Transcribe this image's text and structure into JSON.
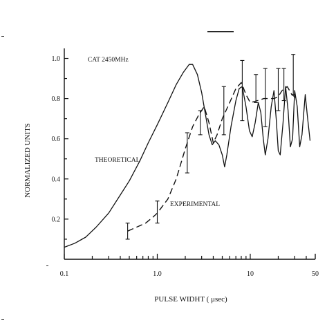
{
  "chart_data": {
    "type": "line",
    "title": "",
    "annotation": "CAT 2450MHz",
    "xlabel": "PULSE WIDHT ( μsec)",
    "ylabel": "NORMALIZED UNITS",
    "x_scale": "log",
    "xlim": [
      0.1,
      50
    ],
    "ylim": [
      0,
      1.05
    ],
    "x_tick_labels": [
      "0.1",
      "1.0",
      "10",
      "50"
    ],
    "y_tick_labels": [
      "0.2",
      "0.4",
      "0.6",
      "0.8",
      "1.0"
    ],
    "grid": false,
    "series": [
      {
        "name": "THEORETICAL",
        "style": "solid",
        "points": [
          [
            0.1,
            0.06
          ],
          [
            0.13,
            0.08
          ],
          [
            0.17,
            0.11
          ],
          [
            0.22,
            0.16
          ],
          [
            0.3,
            0.23
          ],
          [
            0.4,
            0.32
          ],
          [
            0.5,
            0.39
          ],
          [
            0.65,
            0.49
          ],
          [
            0.8,
            0.58
          ],
          [
            1.0,
            0.67
          ],
          [
            1.3,
            0.78
          ],
          [
            1.6,
            0.87
          ],
          [
            1.9,
            0.93
          ],
          [
            2.2,
            0.97
          ],
          [
            2.4,
            0.97
          ],
          [
            2.7,
            0.92
          ],
          [
            3.0,
            0.83
          ],
          [
            3.3,
            0.72
          ],
          [
            3.6,
            0.62
          ],
          [
            3.9,
            0.57
          ],
          [
            4.2,
            0.59
          ],
          [
            4.6,
            0.57
          ],
          [
            5.0,
            0.52
          ],
          [
            5.3,
            0.46
          ],
          [
            5.6,
            0.52
          ],
          [
            6.2,
            0.66
          ],
          [
            7.0,
            0.79
          ],
          [
            7.6,
            0.85
          ],
          [
            8.2,
            0.86
          ],
          [
            9.0,
            0.76
          ],
          [
            9.8,
            0.64
          ],
          [
            10.5,
            0.61
          ],
          [
            11.3,
            0.68
          ],
          [
            12.2,
            0.78
          ],
          [
            13.0,
            0.73
          ],
          [
            13.8,
            0.6
          ],
          [
            14.5,
            0.52
          ],
          [
            15.5,
            0.6
          ],
          [
            16.8,
            0.76
          ],
          [
            18.0,
            0.84
          ],
          [
            19.0,
            0.7
          ],
          [
            20.0,
            0.54
          ],
          [
            21.0,
            0.52
          ],
          [
            22.5,
            0.68
          ],
          [
            24.0,
            0.86
          ],
          [
            25.5,
            0.74
          ],
          [
            27.0,
            0.56
          ],
          [
            28.5,
            0.6
          ],
          [
            30.0,
            0.84
          ],
          [
            32.0,
            0.76
          ],
          [
            34.0,
            0.56
          ],
          [
            36.0,
            0.62
          ],
          [
            39.0,
            0.82
          ],
          [
            41.0,
            0.72
          ],
          [
            44.0,
            0.59
          ]
        ]
      },
      {
        "name": "EXPERIMENTAL",
        "style": "dashed",
        "points": [
          [
            0.48,
            0.14
          ],
          [
            0.6,
            0.16
          ],
          [
            0.75,
            0.18
          ],
          [
            0.9,
            0.21
          ],
          [
            1.0,
            0.23
          ],
          [
            1.3,
            0.3
          ],
          [
            1.6,
            0.4
          ],
          [
            2.0,
            0.55
          ],
          [
            2.4,
            0.66
          ],
          [
            2.8,
            0.72
          ],
          [
            3.2,
            0.76
          ],
          [
            3.6,
            0.68
          ],
          [
            4.0,
            0.58
          ],
          [
            4.4,
            0.62
          ],
          [
            5.0,
            0.7
          ],
          [
            6.0,
            0.78
          ],
          [
            7.0,
            0.85
          ],
          [
            8.0,
            0.88
          ],
          [
            9.0,
            0.82
          ],
          [
            10.0,
            0.78
          ],
          [
            12.0,
            0.79
          ],
          [
            14.0,
            0.8
          ],
          [
            16.0,
            0.8
          ],
          [
            18.0,
            0.8
          ],
          [
            20.0,
            0.81
          ],
          [
            22.0,
            0.84
          ],
          [
            25.0,
            0.86
          ],
          [
            28.0,
            0.82
          ],
          [
            32.0,
            0.8
          ]
        ],
        "error_bars": [
          {
            "x": 0.48,
            "low": 0.1,
            "high": 0.18
          },
          {
            "x": 1.0,
            "low": 0.18,
            "high": 0.29
          },
          {
            "x": 2.1,
            "low": 0.43,
            "high": 0.63
          },
          {
            "x": 2.9,
            "low": 0.62,
            "high": 0.74
          },
          {
            "x": 5.2,
            "low": 0.62,
            "high": 0.86
          },
          {
            "x": 8.2,
            "low": 0.69,
            "high": 0.99
          },
          {
            "x": 11.5,
            "low": 0.78,
            "high": 0.92
          },
          {
            "x": 14.5,
            "low": 0.66,
            "high": 0.95
          },
          {
            "x": 20.0,
            "low": 0.74,
            "high": 0.95
          },
          {
            "x": 23.0,
            "low": 0.79,
            "high": 0.95
          },
          {
            "x": 29.0,
            "low": 0.82,
            "high": 1.02
          }
        ]
      }
    ]
  }
}
